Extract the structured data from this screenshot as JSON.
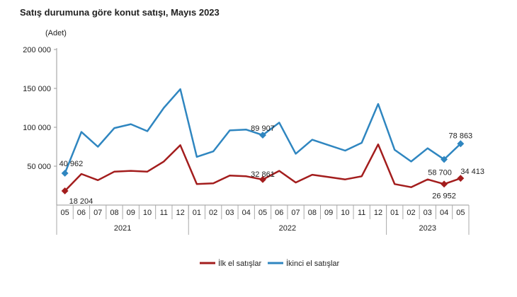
{
  "chart_data": {
    "type": "line",
    "title": "Satış durumuna göre konut satışı, Mayıs 2023",
    "ylabel": "(Adet)",
    "ylim": [
      0,
      200000
    ],
    "yticks": [
      "50 000",
      "100 000",
      "150 000",
      "200 000"
    ],
    "ytick_values": [
      50000,
      100000,
      150000,
      200000
    ],
    "categories": [
      "05",
      "06",
      "07",
      "08",
      "09",
      "10",
      "11",
      "12",
      "01",
      "02",
      "03",
      "04",
      "05",
      "06",
      "07",
      "08",
      "09",
      "10",
      "11",
      "12",
      "01",
      "02",
      "03",
      "04",
      "05"
    ],
    "years": [
      {
        "label": "2021",
        "span": 8
      },
      {
        "label": "2022",
        "span": 12
      },
      {
        "label": "2023",
        "span": 5
      }
    ],
    "grid": false,
    "legend": "bottom",
    "series": [
      {
        "name": "İlk el satışlar",
        "color": "#a31d1d",
        "values": [
          18204,
          40000,
          32000,
          43000,
          44000,
          43000,
          56000,
          77000,
          27000,
          28000,
          38000,
          37000,
          32861,
          44000,
          29000,
          39000,
          36000,
          33000,
          37000,
          78000,
          27000,
          23000,
          33000,
          26952,
          34413
        ],
        "labels": [
          {
            "index": 0,
            "text": "18 204"
          },
          {
            "index": 12,
            "text": "32 861"
          },
          {
            "index": 23,
            "text": "26 952"
          },
          {
            "index": 24,
            "text": "34 413"
          }
        ]
      },
      {
        "name": "İkinci el satışlar",
        "color": "#2f86c0",
        "values": [
          40962,
          94000,
          75000,
          99000,
          104000,
          95000,
          125000,
          149000,
          62000,
          69000,
          96000,
          97000,
          89907,
          106000,
          66000,
          84000,
          77000,
          70000,
          80000,
          130000,
          71000,
          56000,
          73000,
          58700,
          78863
        ],
        "labels": [
          {
            "index": 0,
            "text": "40 962"
          },
          {
            "index": 12,
            "text": "89 907"
          },
          {
            "index": 23,
            "text": "58 700"
          },
          {
            "index": 24,
            "text": "78 863"
          }
        ]
      }
    ]
  }
}
